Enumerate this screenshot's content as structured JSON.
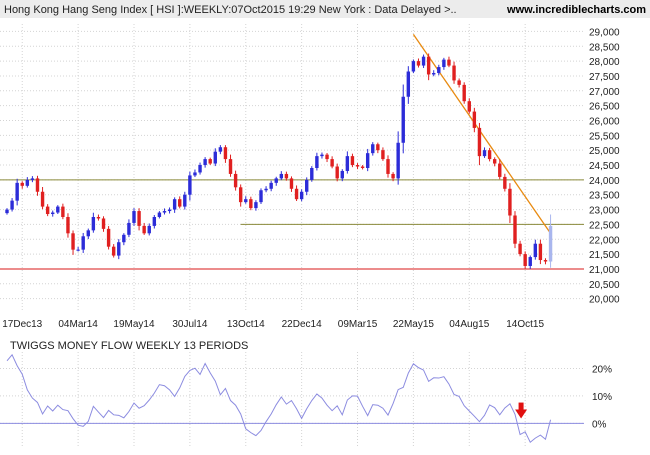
{
  "header": {
    "title": "Hong Kong Hang Seng Index [ HSI ]:WEEKLY:07Oct2015 19:29 New York : Data Delayed >..",
    "brand": "www.incrediblecharts.com"
  },
  "colors": {
    "header_bg": "#ececec",
    "up_candle": "#2c2cd8",
    "down_candle": "#e02020",
    "last_candle": "#a9b6ee",
    "support_line": "#8a8a3a",
    "red_line": "#d81818",
    "trend_line": "#e88a10",
    "indicator_line": "#8c8ce0",
    "arrow": "#e01010",
    "grid": "#d4d4d4"
  },
  "chart_data": [
    {
      "type": "candlestick",
      "title": "Hong Kong Hang Seng Index [ HSI ]:WEEKLY:07Oct2015 19:29 New York : Data Delayed >..",
      "x_ticks": [
        "17Dec13",
        "04Mar14",
        "19May14",
        "30Jul14",
        "13Oct14",
        "22Dec14",
        "09Mar15",
        "22May15",
        "04Aug15",
        "14Oct15"
      ],
      "y_ticks": [
        "29,000",
        "28,500",
        "28,000",
        "27,500",
        "27,000",
        "26,500",
        "26,000",
        "25,500",
        "25,000",
        "24,500",
        "24,000",
        "23,500",
        "23,000",
        "22,500",
        "22,000",
        "21,500",
        "21,000",
        "20,500",
        "20,000"
      ],
      "ylim": [
        19550,
        29250
      ],
      "grid": true,
      "tick_index": [
        3,
        14,
        25,
        36,
        47,
        58,
        69,
        80,
        91,
        102
      ],
      "closes": [
        23000,
        23300,
        23900,
        23800,
        24000,
        24050,
        23600,
        23100,
        22850,
        22900,
        23100,
        22750,
        22200,
        21650,
        21650,
        22100,
        22300,
        22750,
        22700,
        22350,
        21750,
        21450,
        21900,
        22150,
        22550,
        22950,
        22450,
        22200,
        22450,
        22750,
        22900,
        22950,
        23000,
        23350,
        23100,
        23500,
        24150,
        24250,
        24500,
        24700,
        24550,
        24950,
        25100,
        24700,
        24200,
        23750,
        23250,
        23350,
        23050,
        23250,
        23650,
        23700,
        23900,
        24050,
        24200,
        24050,
        23700,
        23350,
        23600,
        24000,
        24400,
        24800,
        24850,
        24700,
        24450,
        24050,
        24300,
        24800,
        24500,
        24450,
        24400,
        24900,
        25200,
        25000,
        24700,
        24200,
        24050,
        25250,
        26800,
        27650,
        28000,
        27850,
        28150,
        27550,
        27600,
        27800,
        28050,
        27850,
        27350,
        27200,
        26650,
        26300,
        25750,
        24800,
        25000,
        24700,
        24550,
        24100,
        23700,
        22800,
        21850,
        21500,
        21100,
        21400,
        21850,
        21300,
        21250,
        22450
      ],
      "support_lines": [
        24000,
        22500,
        21000
      ],
      "trend_line": {
        "from_index": 80,
        "from_value": 28900,
        "to_index": 107,
        "to_value": 22200
      }
    },
    {
      "type": "line",
      "title": "TWIGGS MONEY FLOW WEEKLY 13 PERIODS",
      "y_ticks": [
        "20%",
        "10%",
        "0%"
      ],
      "ylim": [
        -9,
        26
      ],
      "zero_line": 0,
      "values": [
        22.8,
        25.0,
        21.0,
        17.9,
        12.2,
        9.2,
        7.6,
        3.4,
        6.3,
        4.5,
        6.6,
        5.0,
        4.6,
        1.7,
        -0.7,
        -1.1,
        0.7,
        6.2,
        4.1,
        2.1,
        4.7,
        3.1,
        2.9,
        2.0,
        4.3,
        7.4,
        5.5,
        6.4,
        8.5,
        11.0,
        14.1,
        13.7,
        12.2,
        9.8,
        12.9,
        17.1,
        19.3,
        20.1,
        17.8,
        21.8,
        18.4,
        15.4,
        10.4,
        12.7,
        8.3,
        6.6,
        3.4,
        -2.0,
        -3.4,
        -4.5,
        -2.6,
        0.6,
        3.4,
        6.8,
        9.6,
        7.0,
        8.3,
        5.3,
        1.8,
        5.3,
        8.3,
        10.7,
        9.2,
        6.6,
        4.6,
        6.4,
        3.1,
        8.5,
        10.0,
        9.9,
        6.2,
        2.8,
        6.8,
        6.6,
        5.5,
        3.0,
        7.2,
        12.3,
        13.1,
        18.3,
        21.7,
        20.3,
        19.4,
        15.3,
        16.6,
        16.5,
        17.0,
        14.3,
        10.5,
        9.8,
        6.4,
        4.5,
        2.6,
        0.6,
        2.9,
        6.7,
        5.7,
        3.1,
        5.6,
        7.1,
        3.3,
        -4.1,
        -3.1,
        -6.9,
        -5.4,
        -4.3,
        -5.8,
        1.3
      ],
      "arrow_index": 101
    }
  ]
}
